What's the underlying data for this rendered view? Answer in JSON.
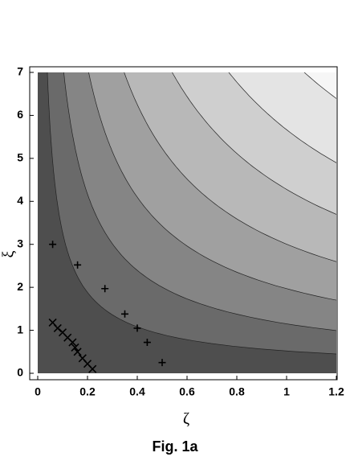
{
  "chart_data": {
    "type": "scatter",
    "title": "Fig. 1a",
    "x_label": "ζ",
    "y_label": "ξ",
    "xlim": [
      0,
      1.2
    ],
    "ylim": [
      0,
      7
    ],
    "xticks": [
      0,
      0.2,
      0.4,
      0.6,
      0.8,
      1,
      1.2
    ],
    "yticks": [
      0,
      1,
      2,
      3,
      4,
      5,
      6,
      7
    ],
    "contour_background": true,
    "series": [
      {
        "marker": "+",
        "color": "#000000",
        "x": [
          0.06,
          0.16,
          0.27,
          0.35,
          0.4,
          0.44,
          0.5
        ],
        "values": [
          3.0,
          2.52,
          1.97,
          1.38,
          1.05,
          0.72,
          0.25
        ]
      },
      {
        "marker": "x",
        "color": "#000000",
        "x": [
          0.06,
          0.08,
          0.1,
          0.12,
          0.14,
          0.15,
          0.16,
          0.18,
          0.2,
          0.22
        ],
        "values": [
          1.18,
          1.05,
          0.95,
          0.83,
          0.72,
          0.6,
          0.5,
          0.35,
          0.22,
          0.1
        ]
      }
    ]
  }
}
